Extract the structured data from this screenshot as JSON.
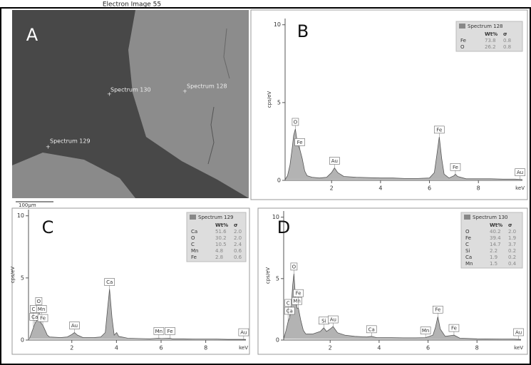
{
  "image": {
    "title": "Electron Image 55",
    "panel_label": "A",
    "markers": [
      "Spectrum 130",
      "Spectrum 128",
      "Spectrum 129"
    ],
    "scale_bar": "100µm"
  },
  "chart_data": [
    {
      "type": "line",
      "panel_label": "B",
      "xlabel": "keV",
      "ylabel": "cps/eV",
      "x": [
        0.1,
        0.2,
        0.3,
        0.4,
        0.45,
        0.52,
        0.6,
        0.7,
        0.8,
        0.9,
        1.0,
        1.2,
        1.5,
        1.8,
        2.0,
        2.12,
        2.25,
        2.5,
        3.0,
        3.5,
        4.0,
        4.5,
        5.0,
        5.5,
        6.0,
        6.2,
        6.3,
        6.4,
        6.5,
        6.6,
        6.8,
        7.0,
        7.06,
        7.15,
        7.5,
        8.0,
        8.5,
        9.0,
        9.5,
        9.8
      ],
      "series": [
        {
          "color": "#9a9a9a",
          "values": [
            0.05,
            0.3,
            1.0,
            2.2,
            2.9,
            3.3,
            2.4,
            2.0,
            1.4,
            0.6,
            0.3,
            0.2,
            0.15,
            0.2,
            0.5,
            0.8,
            0.5,
            0.25,
            0.2,
            0.18,
            0.15,
            0.15,
            0.12,
            0.12,
            0.15,
            0.5,
            1.6,
            2.8,
            1.4,
            0.4,
            0.15,
            0.3,
            0.4,
            0.25,
            0.1,
            0.1,
            0.1,
            0.08,
            0.08,
            0.05
          ]
        }
      ],
      "xlim": [
        0.1,
        9.8
      ],
      "ylim": [
        0,
        10.4
      ],
      "xticks": [
        2,
        4,
        6,
        8
      ],
      "yticks": [
        0,
        5,
        10
      ],
      "peaks": [
        {
          "label": "O",
          "x": 0.52
        },
        {
          "label": "Fe",
          "x": 0.7
        },
        {
          "label": "Au",
          "x": 2.12
        },
        {
          "label": "Fe",
          "x": 6.4
        },
        {
          "label": "Fe",
          "x": 7.06
        },
        {
          "label": "Au",
          "x": 9.7
        }
      ],
      "table": {
        "title": "Spectrum 128",
        "columns": [
          "Wt%",
          "σ"
        ],
        "rows": [
          {
            "element": "Fe",
            "values": [
              "73.8",
              "0.8"
            ]
          },
          {
            "element": "O",
            "values": [
              "26.2",
              "0.8"
            ]
          }
        ]
      }
    },
    {
      "type": "line",
      "panel_label": "C",
      "xlabel": "keV",
      "ylabel": "cps/eV",
      "x": [
        0.1,
        0.2,
        0.28,
        0.34,
        0.4,
        0.52,
        0.6,
        0.7,
        0.8,
        0.9,
        1.0,
        1.5,
        1.8,
        2.0,
        2.12,
        2.25,
        2.5,
        3.0,
        3.3,
        3.5,
        3.6,
        3.69,
        3.8,
        3.9,
        4.01,
        4.1,
        4.5,
        5.0,
        5.5,
        5.9,
        6.0,
        6.4,
        6.5,
        7.0,
        7.5,
        8.0,
        8.5,
        9.0,
        9.5,
        9.8
      ],
      "series": [
        {
          "color": "#9a9a9a",
          "values": [
            0.1,
            0.6,
            1.0,
            1.3,
            1.5,
            2.0,
            1.4,
            1.2,
            0.8,
            0.4,
            0.25,
            0.2,
            0.25,
            0.45,
            0.6,
            0.4,
            0.2,
            0.2,
            0.25,
            0.6,
            2.5,
            4.1,
            1.8,
            0.4,
            0.6,
            0.3,
            0.15,
            0.12,
            0.1,
            0.15,
            0.12,
            0.15,
            0.1,
            0.1,
            0.08,
            0.08,
            0.08,
            0.06,
            0.06,
            0.05
          ]
        }
      ],
      "xlim": [
        0.06,
        9.8
      ],
      "ylim": [
        0,
        10.5
      ],
      "xticks": [
        2,
        4,
        6,
        8
      ],
      "yticks": [
        0,
        5,
        10
      ],
      "peaks": [
        {
          "label": "Ca",
          "x": 0.34
        },
        {
          "label": "C",
          "x": 0.28
        },
        {
          "label": "O",
          "x": 0.52
        },
        {
          "label": "Mn",
          "x": 0.64
        },
        {
          "label": "Fe",
          "x": 0.7
        },
        {
          "label": "Au",
          "x": 2.12
        },
        {
          "label": "Ca",
          "x": 3.69
        },
        {
          "label": "Mn",
          "x": 5.9
        },
        {
          "label": "Fe",
          "x": 6.4
        },
        {
          "label": "Au",
          "x": 9.7
        }
      ],
      "table": {
        "title": "Spectrum 129",
        "columns": [
          "Wt%",
          "σ"
        ],
        "rows": [
          {
            "element": "Ca",
            "values": [
              "51.6",
              "2.0"
            ]
          },
          {
            "element": "O",
            "values": [
              "30.2",
              "2.0"
            ]
          },
          {
            "element": "C",
            "values": [
              "10.5",
              "2.4"
            ]
          },
          {
            "element": "Mn",
            "values": [
              "4.8",
              "0.6"
            ]
          },
          {
            "element": "Fe",
            "values": [
              "2.8",
              "0.6"
            ]
          }
        ]
      }
    },
    {
      "type": "line",
      "panel_label": "D",
      "xlabel": "keV",
      "ylabel": "cps/eV",
      "x": [
        0.1,
        0.2,
        0.28,
        0.34,
        0.4,
        0.47,
        0.52,
        0.58,
        0.64,
        0.7,
        0.8,
        0.9,
        1.0,
        1.3,
        1.6,
        1.74,
        1.85,
        2.0,
        2.12,
        2.3,
        2.6,
        3.0,
        3.5,
        3.69,
        3.9,
        4.5,
        5.0,
        5.5,
        5.9,
        6.2,
        6.3,
        6.4,
        6.5,
        6.7,
        7.06,
        7.3,
        8.0,
        9.0,
        9.5,
        9.8
      ],
      "series": [
        {
          "color": "#9a9a9a",
          "values": [
            0.1,
            0.8,
            1.5,
            1.8,
            2.5,
            4.5,
            5.4,
            3.5,
            2.6,
            2.6,
            1.6,
            0.8,
            0.5,
            0.5,
            0.7,
            1.0,
            0.7,
            0.9,
            1.1,
            0.6,
            0.4,
            0.3,
            0.25,
            0.3,
            0.2,
            0.2,
            0.18,
            0.18,
            0.2,
            0.4,
            1.0,
            1.9,
            0.9,
            0.3,
            0.4,
            0.15,
            0.1,
            0.08,
            0.08,
            0.05
          ]
        }
      ],
      "xlim": [
        0.1,
        9.8
      ],
      "ylim": [
        0,
        10.5
      ],
      "xticks": [
        2,
        4,
        6,
        8
      ],
      "yticks": [
        0,
        5,
        10
      ],
      "peaks": [
        {
          "label": "Ca",
          "x": 0.34
        },
        {
          "label": "C",
          "x": 0.28
        },
        {
          "label": "O",
          "x": 0.52
        },
        {
          "label": "Mn",
          "x": 0.64
        },
        {
          "label": "Fe",
          "x": 0.7
        },
        {
          "label": "Si",
          "x": 1.74
        },
        {
          "label": "Au",
          "x": 2.12
        },
        {
          "label": "Ca",
          "x": 3.69
        },
        {
          "label": "Mn",
          "x": 5.9
        },
        {
          "label": "Fe",
          "x": 6.4
        },
        {
          "label": "Fe",
          "x": 7.06
        },
        {
          "label": "Au",
          "x": 9.7
        }
      ],
      "table": {
        "title": "Spectrum 130",
        "columns": [
          "Wt%",
          "σ"
        ],
        "rows": [
          {
            "element": "O",
            "values": [
              "40.2",
              "2.0"
            ]
          },
          {
            "element": "Fe",
            "values": [
              "39.4",
              "1.9"
            ]
          },
          {
            "element": "C",
            "values": [
              "14.7",
              "3.7"
            ]
          },
          {
            "element": "Si",
            "values": [
              "2.2",
              "0.2"
            ]
          },
          {
            "element": "Ca",
            "values": [
              "1.9",
              "0.2"
            ]
          },
          {
            "element": "Mn",
            "values": [
              "1.5",
              "0.4"
            ]
          }
        ]
      }
    }
  ]
}
